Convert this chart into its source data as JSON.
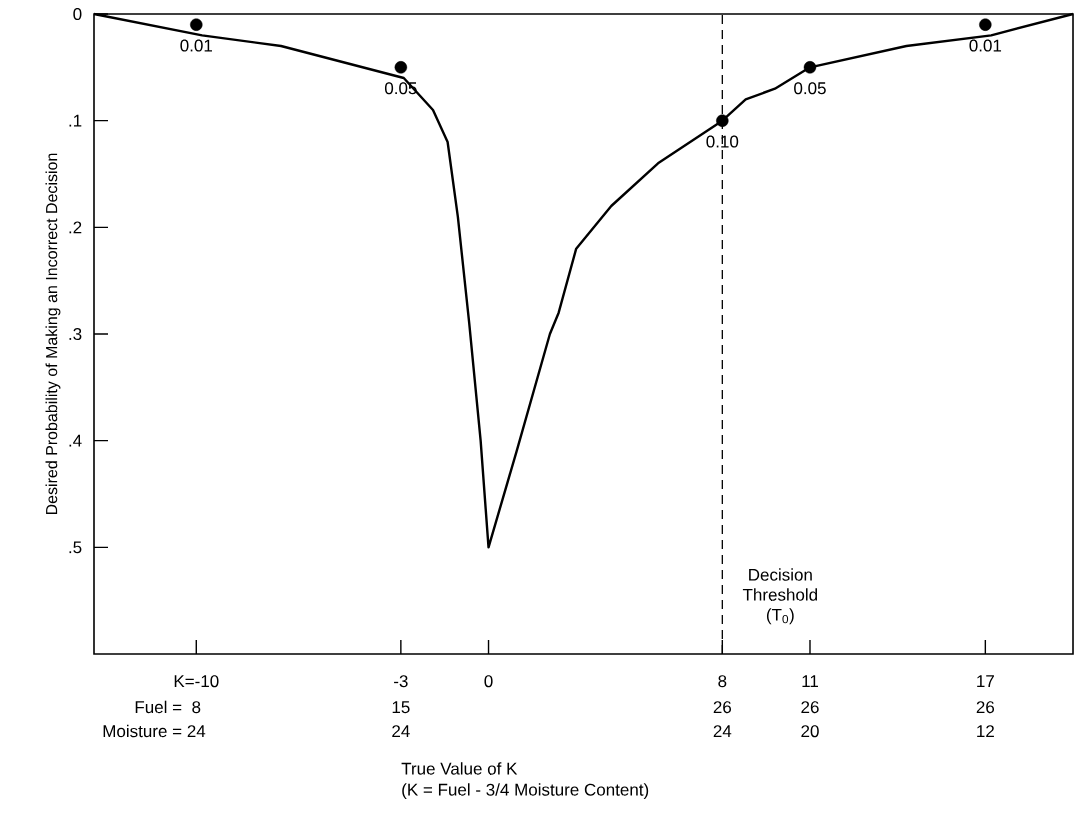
{
  "chart_data": {
    "type": "line",
    "xlabel": "True Value of K",
    "ylabel": "Desired Probability of Making an Incorrect Decision",
    "xlim": [
      -13.5,
      20
    ],
    "xticks": [
      {
        "value": -10,
        "label": "K=-10"
      },
      -3,
      0,
      8,
      11,
      17
    ],
    "ylim": [
      0.6,
      0
    ],
    "yticks": [
      0,
      {
        "value": 0.1,
        "label": ".1"
      },
      {
        "value": 0.2,
        "label": ".2"
      },
      {
        "value": 0.3,
        "label": ".3"
      },
      {
        "value": 0.4,
        "label": ".4"
      },
      {
        "value": 0.5,
        "label": ".5"
      }
    ],
    "series": [
      {
        "color": "#000000",
        "x": [
          -13.5,
          -9.8,
          -7.1,
          -2.9,
          -1.9,
          -1.4,
          -1.05,
          -0.66,
          -0.27,
          0,
          0.96,
          2.1,
          2.4,
          3.0,
          4.2,
          5.8,
          8.0,
          8.8,
          9.8,
          11,
          14.3,
          17.2,
          20
        ],
        "values": [
          0,
          0.02,
          0.03,
          0.06,
          0.09,
          0.12,
          0.19,
          0.29,
          0.4,
          0.5,
          0.41,
          0.3,
          0.28,
          0.22,
          0.18,
          0.14,
          0.1,
          0.08,
          0.07,
          0.05,
          0.03,
          0.02,
          0
        ]
      },
      {
        "type": "scatter",
        "color": "#000000",
        "marker": "circle",
        "x": [
          -10,
          -3,
          8,
          11,
          17
        ],
        "values": [
          0.01,
          0.05,
          0.1,
          0.05,
          0.01
        ],
        "value_labels": [
          "0.01",
          "0.05",
          "0.10",
          "0.05",
          "0.01"
        ]
      }
    ],
    "ref_lines": [
      {
        "axis": "x",
        "value": 8,
        "label": "Decision Threshold (T$_{0}$)",
        "color": "#000000",
        "line_style": "dashed"
      }
    ],
    "annotations": [
      "(K = Fuel - 3/4 Moisture Content)",
      "Fuel =",
      "Moisture =",
      "8",
      "24",
      "15",
      "24",
      "26",
      "24",
      "26",
      "20",
      "26",
      "12"
    ]
  }
}
